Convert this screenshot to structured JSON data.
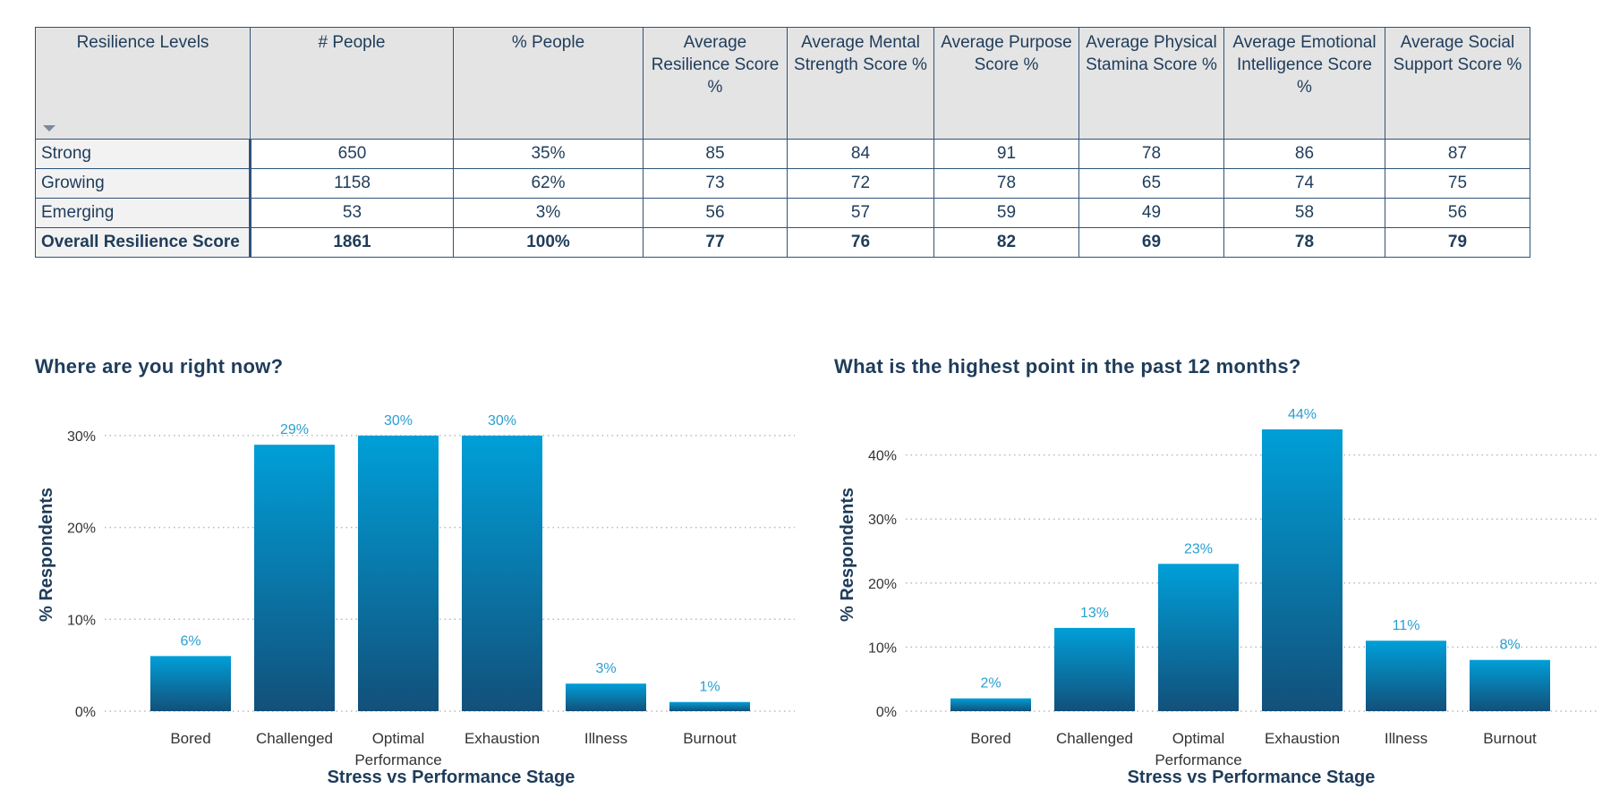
{
  "table": {
    "headers": [
      "Resilience Levels",
      "# People",
      "% People",
      "Average Resilience Score %",
      "Average Mental Strength Score %",
      "Average Purpose Score %",
      "Average Physical Stamina Score %",
      "Average Emotional Intelligence Score %",
      "Average Social Support Score %"
    ],
    "rows": [
      [
        "Strong",
        "650",
        "35%",
        "85",
        "84",
        "91",
        "78",
        "86",
        "87"
      ],
      [
        "Growing",
        "1158",
        "62%",
        "73",
        "72",
        "78",
        "65",
        "74",
        "75"
      ],
      [
        "Emerging",
        "53",
        "3%",
        "56",
        "57",
        "59",
        "49",
        "58",
        "56"
      ]
    ],
    "total": [
      "Overall Resilience Score",
      "1861",
      "100%",
      "77",
      "76",
      "82",
      "69",
      "78",
      "79"
    ]
  },
  "colors": {
    "bar_top": "#009fd8",
    "bar_bottom": "#12507a",
    "label": "#2a9fd0",
    "axis_text": "#333333",
    "title": "#1f3c5a"
  },
  "chart_data": [
    {
      "type": "bar",
      "title": "Where are you right now?",
      "xlabel": "Stress vs Performance Stage",
      "ylabel": "% Respondents",
      "categories": [
        "Bored",
        "Challenged",
        "Optimal Performance",
        "Exhaustion",
        "Illness",
        "Burnout"
      ],
      "values": [
        6,
        29,
        30,
        30,
        3,
        1
      ],
      "value_labels": [
        "6%",
        "29%",
        "30%",
        "30%",
        "3%",
        "1%"
      ],
      "yticks": [
        0,
        10,
        20,
        30
      ],
      "ytick_labels": [
        "0%",
        "10%",
        "20%",
        "30%"
      ],
      "ylim": [
        0,
        30
      ],
      "grid": true
    },
    {
      "type": "bar",
      "title": "What is the highest point in the past 12 months?",
      "xlabel": "Stress vs Performance Stage",
      "ylabel": "% Respondents",
      "categories": [
        "Bored",
        "Challenged",
        "Optimal Performance",
        "Exhaustion",
        "Illness",
        "Burnout"
      ],
      "values": [
        2,
        13,
        23,
        44,
        11,
        8
      ],
      "value_labels": [
        "2%",
        "13%",
        "23%",
        "44%",
        "11%",
        "8%"
      ],
      "yticks": [
        0,
        10,
        20,
        30,
        40
      ],
      "ytick_labels": [
        "0%",
        "10%",
        "20%",
        "30%",
        "40%"
      ],
      "ylim": [
        0,
        44
      ],
      "grid": true
    }
  ]
}
